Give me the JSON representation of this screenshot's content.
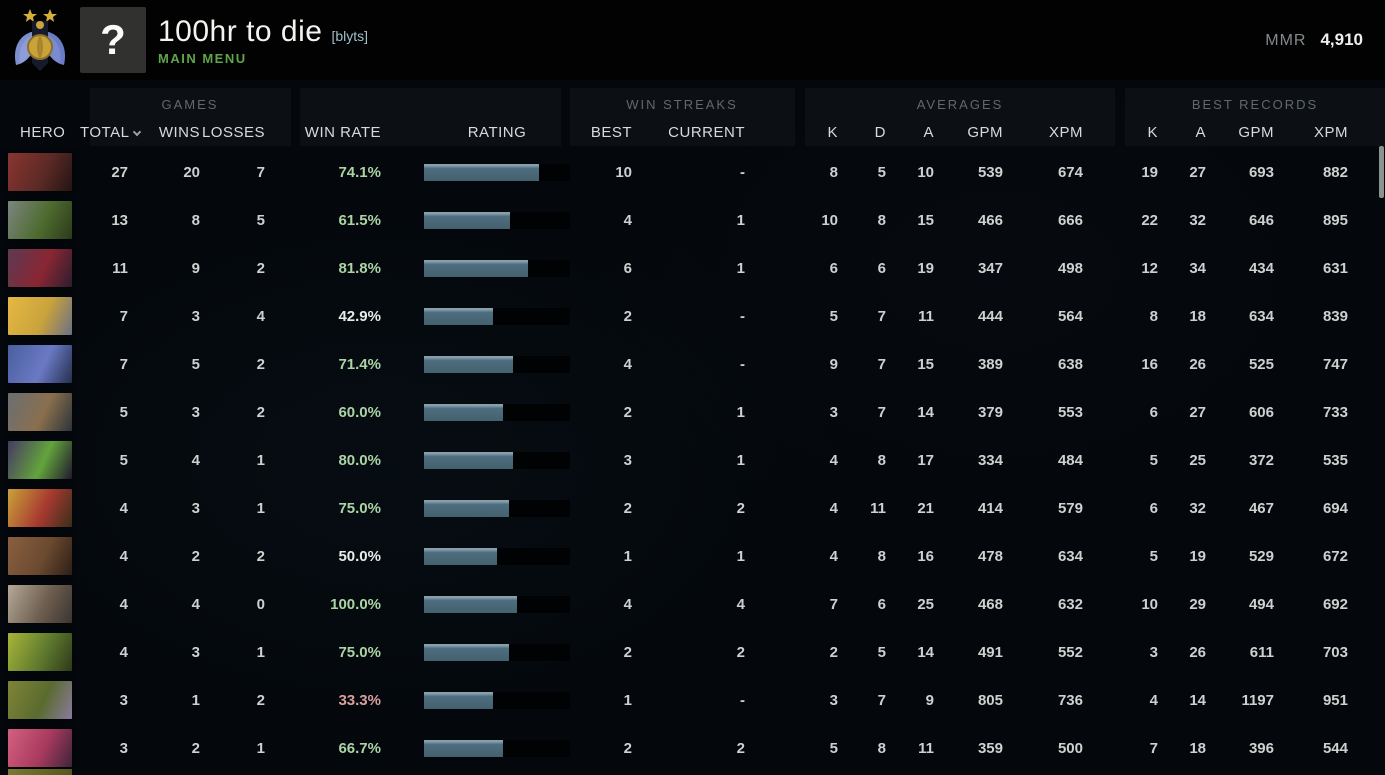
{
  "header": {
    "player_name": "100hr to die",
    "player_tag": "[blyts]",
    "menu_label": "MAIN MENU",
    "avatar_text": "?",
    "mmr_label": "MMR",
    "mmr_value": "4,910"
  },
  "colors": {
    "accent_green": "#5fa549",
    "win_rate": {
      "positive": "#abd4a4",
      "neutral": "#e9ebe9",
      "negative": "#d89f9f"
    },
    "bar_fill": "#4e6d7f",
    "bar_fill_highlight": "#87a0ab",
    "bar_track": "#010204"
  },
  "table": {
    "groups": {
      "games": "GAMES",
      "win_streaks": "WIN STREAKS",
      "averages": "AVERAGES",
      "best_records": "BEST RECORDS"
    },
    "columns": {
      "hero": "HERO",
      "total": "TOTAL",
      "wins": "WINS",
      "losses": "LOSSES",
      "win_rate": "WIN RATE",
      "rating": "RATING",
      "best": "BEST",
      "current": "CURRENT",
      "k": "K",
      "d": "D",
      "a": "A",
      "gpm": "GPM",
      "xpm": "XPM"
    },
    "rows": [
      {
        "hero": {
          "name": "axe",
          "colors": [
            "#8a3530",
            "#5c2a26",
            "#241513"
          ]
        },
        "total": 27,
        "wins": 20,
        "losses": 7,
        "win_rate": "74.1%",
        "win_rate_tone": "positive",
        "rating_fill": 0.79,
        "streak_best": "10",
        "streak_current": "-",
        "avg_k": 8,
        "avg_d": 5,
        "avg_a": 10,
        "avg_gpm": 539,
        "avg_xpm": 674,
        "best_k": 19,
        "best_a": 27,
        "best_gpm": 693,
        "best_xpm": 882
      },
      {
        "hero": {
          "name": "necrophos",
          "colors": [
            "#7b8580",
            "#4e6b2e",
            "#2c3a1c"
          ]
        },
        "total": 13,
        "wins": 8,
        "losses": 5,
        "win_rate": "61.5%",
        "win_rate_tone": "positive",
        "rating_fill": 0.59,
        "streak_best": "4",
        "streak_current": "1",
        "avg_k": 10,
        "avg_d": 8,
        "avg_a": 15,
        "avg_gpm": 466,
        "avg_xpm": 666,
        "best_k": 22,
        "best_a": 32,
        "best_gpm": 646,
        "best_xpm": 895
      },
      {
        "hero": {
          "name": "spectre",
          "colors": [
            "#5d3a52",
            "#8a2633",
            "#2c1e2e"
          ]
        },
        "total": 11,
        "wins": 9,
        "losses": 2,
        "win_rate": "81.8%",
        "win_rate_tone": "positive",
        "rating_fill": 0.71,
        "streak_best": "6",
        "streak_current": "1",
        "avg_k": 6,
        "avg_d": 6,
        "avg_a": 19,
        "avg_gpm": 347,
        "avg_xpm": 498,
        "best_k": 12,
        "best_a": 34,
        "best_gpm": 434,
        "best_xpm": 631
      },
      {
        "hero": {
          "name": "keeper-of-the-light",
          "colors": [
            "#e5b842",
            "#caa33c",
            "#6b6f85"
          ]
        },
        "total": 7,
        "wins": 3,
        "losses": 4,
        "win_rate": "42.9%",
        "win_rate_tone": "neutral",
        "rating_fill": 0.47,
        "streak_best": "2",
        "streak_current": "-",
        "avg_k": 5,
        "avg_d": 7,
        "avg_a": 11,
        "avg_gpm": 444,
        "avg_xpm": 564,
        "best_k": 8,
        "best_a": 18,
        "best_gpm": 634,
        "best_xpm": 839
      },
      {
        "hero": {
          "name": "riki",
          "colors": [
            "#4a5f9e",
            "#6b79c4",
            "#24304f"
          ]
        },
        "total": 7,
        "wins": 5,
        "losses": 2,
        "win_rate": "71.4%",
        "win_rate_tone": "positive",
        "rating_fill": 0.61,
        "streak_best": "4",
        "streak_current": "-",
        "avg_k": 9,
        "avg_d": 7,
        "avg_a": 15,
        "avg_gpm": 389,
        "avg_xpm": 638,
        "best_k": 16,
        "best_a": 26,
        "best_gpm": 525,
        "best_xpm": 747
      },
      {
        "hero": {
          "name": "magnus",
          "colors": [
            "#6b6f73",
            "#8a6f4e",
            "#2e3438"
          ]
        },
        "total": 5,
        "wins": 3,
        "losses": 2,
        "win_rate": "60.0%",
        "win_rate_tone": "positive",
        "rating_fill": 0.54,
        "streak_best": "2",
        "streak_current": "1",
        "avg_k": 3,
        "avg_d": 7,
        "avg_a": 14,
        "avg_gpm": 379,
        "avg_xpm": 553,
        "best_k": 6,
        "best_a": 27,
        "best_gpm": 606,
        "best_xpm": 733
      },
      {
        "hero": {
          "name": "rubick",
          "colors": [
            "#473a63",
            "#63a43c",
            "#201a2e"
          ]
        },
        "total": 5,
        "wins": 4,
        "losses": 1,
        "win_rate": "80.0%",
        "win_rate_tone": "positive",
        "rating_fill": 0.61,
        "streak_best": "3",
        "streak_current": "1",
        "avg_k": 4,
        "avg_d": 8,
        "avg_a": 17,
        "avg_gpm": 334,
        "avg_xpm": 484,
        "best_k": 5,
        "best_a": 25,
        "best_gpm": 372,
        "best_xpm": 535
      },
      {
        "hero": {
          "name": "bounty-hunter",
          "colors": [
            "#c9a23a",
            "#a83a30",
            "#3a2e1a"
          ]
        },
        "total": 4,
        "wins": 3,
        "losses": 1,
        "win_rate": "75.0%",
        "win_rate_tone": "positive",
        "rating_fill": 0.58,
        "streak_best": "2",
        "streak_current": "2",
        "avg_k": 4,
        "avg_d": 11,
        "avg_a": 21,
        "avg_gpm": 414,
        "avg_xpm": 579,
        "best_k": 6,
        "best_a": 32,
        "best_gpm": 467,
        "best_xpm": 694
      },
      {
        "hero": {
          "name": "centaur-warrunner",
          "colors": [
            "#8a5f3f",
            "#6b4a30",
            "#2e1f16"
          ]
        },
        "total": 4,
        "wins": 2,
        "losses": 2,
        "win_rate": "50.0%",
        "win_rate_tone": "neutral",
        "rating_fill": 0.5,
        "streak_best": "1",
        "streak_current": "1",
        "avg_k": 4,
        "avg_d": 8,
        "avg_a": 16,
        "avg_gpm": 478,
        "avg_xpm": 634,
        "best_k": 5,
        "best_a": 19,
        "best_gpm": 529,
        "best_xpm": 672
      },
      {
        "hero": {
          "name": "sniper",
          "colors": [
            "#b5a998",
            "#6f5f50",
            "#3a3530"
          ]
        },
        "total": 4,
        "wins": 4,
        "losses": 0,
        "win_rate": "100.0%",
        "win_rate_tone": "positive",
        "rating_fill": 0.64,
        "streak_best": "4",
        "streak_current": "4",
        "avg_k": 7,
        "avg_d": 6,
        "avg_a": 25,
        "avg_gpm": 468,
        "avg_xpm": 632,
        "best_k": 10,
        "best_a": 29,
        "best_gpm": 494,
        "best_xpm": 692
      },
      {
        "hero": {
          "name": "venomancer",
          "colors": [
            "#a8b53a",
            "#5f7a2e",
            "#2e3a1a"
          ]
        },
        "total": 4,
        "wins": 3,
        "losses": 1,
        "win_rate": "75.0%",
        "win_rate_tone": "positive",
        "rating_fill": 0.58,
        "streak_best": "2",
        "streak_current": "2",
        "avg_k": 2,
        "avg_d": 5,
        "avg_a": 14,
        "avg_gpm": 491,
        "avg_xpm": 552,
        "best_k": 3,
        "best_a": 26,
        "best_gpm": 611,
        "best_xpm": 703
      },
      {
        "hero": {
          "name": "alchemist",
          "colors": [
            "#7f8438",
            "#5a6b2e",
            "#8a7a9e"
          ]
        },
        "total": 3,
        "wins": 1,
        "losses": 2,
        "win_rate": "33.3%",
        "win_rate_tone": "negative",
        "rating_fill": 0.47,
        "streak_best": "1",
        "streak_current": "-",
        "avg_k": 3,
        "avg_d": 7,
        "avg_a": 9,
        "avg_gpm": 805,
        "avg_xpm": 736,
        "best_k": 4,
        "best_a": 14,
        "best_gpm": 1197,
        "best_xpm": 951
      },
      {
        "hero": {
          "name": "dazzle",
          "colors": [
            "#d4607f",
            "#a83a5f",
            "#3f2438"
          ]
        },
        "total": 3,
        "wins": 2,
        "losses": 1,
        "win_rate": "66.7%",
        "win_rate_tone": "positive",
        "rating_fill": 0.54,
        "streak_best": "2",
        "streak_current": "2",
        "avg_k": 5,
        "avg_d": 8,
        "avg_a": 11,
        "avg_gpm": 359,
        "avg_xpm": 500,
        "best_k": 7,
        "best_a": 18,
        "best_gpm": 396,
        "best_xpm": 544
      }
    ],
    "partial_row": {
      "hero": {
        "name": "next-hero",
        "colors": [
          "#7a7a33",
          "#55561f"
        ]
      }
    }
  }
}
